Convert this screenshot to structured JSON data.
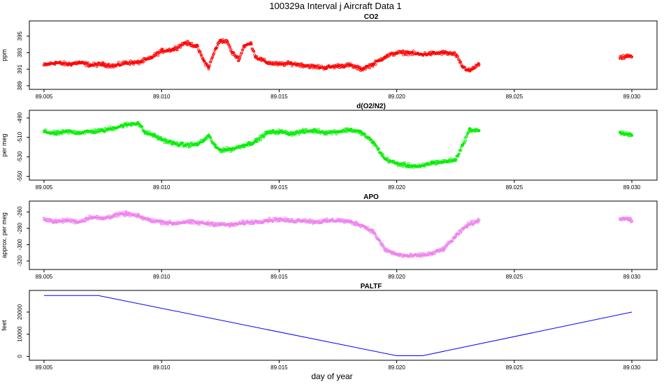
{
  "title": "100329a   Interval j Aircraft Data 1",
  "xlabel": "day of year",
  "chart_data": [
    {
      "type": "scatter",
      "title": "CO2",
      "ylabel": "ppm",
      "color": "#ff0000",
      "xlim": [
        89.005,
        89.03
      ],
      "ylim": [
        388.9,
        396.5
      ],
      "yticks": [
        389,
        391,
        393,
        395
      ],
      "xticks": [
        "89.005",
        "89.010",
        "89.015",
        "89.020",
        "89.025",
        "89.030"
      ],
      "series": [
        {
          "name": "CO2",
          "x": [
            89.005,
            89.0055,
            89.006,
            89.0065,
            89.007,
            89.0075,
            89.008,
            89.0085,
            89.009,
            89.0095,
            89.01,
            89.0105,
            89.011,
            89.0115,
            89.0118,
            89.012,
            89.0123,
            89.0125,
            89.0128,
            89.013,
            89.0133,
            89.0135,
            89.0138,
            89.014,
            89.0145,
            89.015,
            89.0155,
            89.016,
            89.0165,
            89.017,
            89.0175,
            89.018,
            89.0185,
            89.019,
            89.0195,
            89.02,
            89.0205,
            89.021,
            89.0215,
            89.022,
            89.0225,
            89.0228,
            89.0231,
            89.0235,
            89.0295,
            89.0298,
            89.03
          ],
          "y": [
            391.5,
            391.8,
            391.6,
            391.8,
            391.5,
            391.6,
            391.4,
            391.8,
            391.8,
            392.3,
            393.2,
            393.4,
            394.2,
            393.8,
            392.0,
            391.2,
            393.5,
            394.5,
            394.3,
            393.0,
            392.2,
            393.8,
            394.1,
            392.5,
            391.8,
            391.6,
            391.7,
            391.5,
            391.3,
            391.2,
            391.4,
            391.5,
            391.0,
            391.6,
            392.5,
            393.0,
            393.0,
            392.8,
            392.9,
            393.0,
            392.8,
            391.3,
            390.8,
            391.6,
            392.3,
            392.6,
            392.5
          ]
        }
      ]
    },
    {
      "type": "scatter",
      "title": "d(O2/N2)",
      "ylabel": "per meg",
      "color": "#00ee00",
      "xlim": [
        89.005,
        89.03
      ],
      "ylim": [
        -551,
        -485
      ],
      "yticks": [
        -490,
        -510,
        -530,
        -550
      ],
      "xticks": [
        "89.005",
        "89.010",
        "89.015",
        "89.020",
        "89.025",
        "89.030"
      ],
      "series": [
        {
          "name": "d(O2/N2)",
          "x": [
            89.005,
            89.0055,
            89.006,
            89.0065,
            89.007,
            89.0075,
            89.008,
            89.0085,
            89.009,
            89.0093,
            89.0096,
            89.01,
            89.0105,
            89.011,
            89.0115,
            89.0118,
            89.012,
            89.0123,
            89.0125,
            89.013,
            89.0135,
            89.0138,
            89.014,
            89.0145,
            89.015,
            89.0155,
            89.016,
            89.0165,
            89.017,
            89.0175,
            89.018,
            89.0185,
            89.019,
            89.0195,
            89.02,
            89.0205,
            89.021,
            89.0215,
            89.022,
            89.0225,
            89.0228,
            89.0231,
            89.0235,
            89.0295,
            89.0298,
            89.03
          ],
          "y": [
            -504,
            -506,
            -504,
            -505,
            -504,
            -503,
            -500,
            -497,
            -495,
            -505,
            -507,
            -512,
            -516,
            -518,
            -517,
            -513,
            -508,
            -520,
            -523,
            -522,
            -518,
            -516,
            -514,
            -505,
            -504,
            -506,
            -504,
            -503,
            -505,
            -504,
            -502,
            -505,
            -515,
            -532,
            -537,
            -539,
            -540,
            -536,
            -535,
            -533,
            -518,
            -502,
            -503,
            -505,
            -507,
            -508
          ]
        }
      ]
    },
    {
      "type": "scatter",
      "title": "APO",
      "ylabel": "approx. per meg",
      "color": "#ee82ee",
      "xlim": [
        89.005,
        89.03
      ],
      "ylim": [
        -327,
        -250
      ],
      "yticks": [
        -260,
        -280,
        -300,
        -320
      ],
      "xticks": [
        "89.005",
        "89.010",
        "89.015",
        "89.020",
        "89.025",
        "89.030"
      ],
      "series": [
        {
          "name": "APO",
          "x": [
            89.005,
            89.0055,
            89.006,
            89.0065,
            89.007,
            89.0075,
            89.008,
            89.0085,
            89.009,
            89.0095,
            89.01,
            89.0105,
            89.011,
            89.0115,
            89.012,
            89.0125,
            89.013,
            89.0135,
            89.014,
            89.0145,
            89.015,
            89.0155,
            89.016,
            89.0165,
            89.017,
            89.0175,
            89.018,
            89.0185,
            89.019,
            89.0195,
            89.02,
            89.0205,
            89.021,
            89.0215,
            89.022,
            89.0225,
            89.023,
            89.0235,
            89.0295,
            89.0298,
            89.03
          ],
          "y": [
            -268,
            -272,
            -270,
            -272,
            -266,
            -268,
            -264,
            -262,
            -265,
            -270,
            -272,
            -274,
            -272,
            -273,
            -274,
            -275,
            -276,
            -273,
            -272,
            -270,
            -269,
            -271,
            -270,
            -272,
            -271,
            -270,
            -272,
            -276,
            -284,
            -306,
            -312,
            -314,
            -313,
            -311,
            -305,
            -290,
            -276,
            -270,
            -268,
            -268,
            -271
          ]
        }
      ]
    },
    {
      "type": "line",
      "title": "PALTF",
      "ylabel": "feet",
      "color": "#0000ff",
      "xlim": [
        89.005,
        89.03
      ],
      "ylim": [
        -500,
        28500
      ],
      "yticks": [
        0,
        10000,
        20000
      ],
      "xticks": [
        "89.005",
        "89.010",
        "89.015",
        "89.020",
        "89.025",
        "89.030"
      ],
      "series": [
        {
          "name": "PALTF",
          "x": [
            89.005,
            89.0073,
            89.02,
            89.0211,
            89.03
          ],
          "y": [
            27500,
            27500,
            300,
            300,
            20000
          ]
        }
      ]
    }
  ]
}
